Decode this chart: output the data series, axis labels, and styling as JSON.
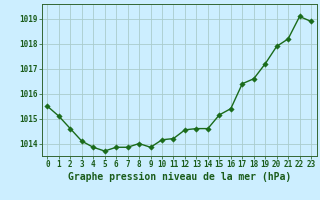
{
  "x": [
    0,
    1,
    2,
    3,
    4,
    5,
    6,
    7,
    8,
    9,
    10,
    11,
    12,
    13,
    14,
    15,
    16,
    17,
    18,
    19,
    20,
    21,
    22,
    23
  ],
  "y": [
    1015.5,
    1015.1,
    1014.6,
    1014.1,
    1013.85,
    1013.7,
    1013.85,
    1013.85,
    1014.0,
    1013.85,
    1014.15,
    1014.2,
    1014.55,
    1014.6,
    1014.6,
    1015.15,
    1015.4,
    1016.4,
    1016.6,
    1017.2,
    1017.9,
    1018.2,
    1019.1,
    1018.9
  ],
  "line_color": "#1a6b1a",
  "marker_color": "#1a6b1a",
  "bg_color": "#cceeff",
  "grid_color": "#aacccc",
  "axis_color": "#336633",
  "tick_color": "#1a5c1a",
  "xlabel": "Graphe pression niveau de la mer (hPa)",
  "ylim_min": 1013.5,
  "ylim_max": 1019.6,
  "yticks": [
    1014,
    1015,
    1016,
    1017,
    1018,
    1019
  ],
  "xticks": [
    0,
    1,
    2,
    3,
    4,
    5,
    6,
    7,
    8,
    9,
    10,
    11,
    12,
    13,
    14,
    15,
    16,
    17,
    18,
    19,
    20,
    21,
    22,
    23
  ],
  "marker_size": 2.8,
  "line_width": 1.0,
  "label_fontsize": 7.0,
  "tick_fontsize": 5.5
}
